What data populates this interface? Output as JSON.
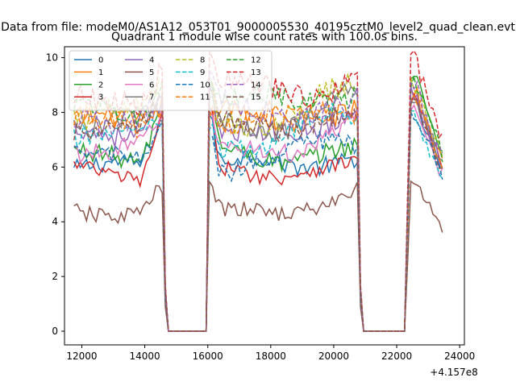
{
  "figure": {
    "suptitle": "Data from file: modeM0/AS1A12_053T01_9000005530_40195cztM0_level2_quad_clean.evt"
  },
  "chart_data": {
    "type": "line",
    "title": "Quadrant 1 module wise count rates with 100.0s bins.",
    "xlabel": "",
    "ylabel": "",
    "x_offset_label": "+4.157e8",
    "xlim": [
      11450,
      24150
    ],
    "ylim": [
      -0.5,
      10.4
    ],
    "xticks": [
      12000,
      14000,
      16000,
      18000,
      20000,
      22000,
      24000
    ],
    "yticks": [
      0,
      2,
      4,
      6,
      8,
      10
    ],
    "legend": {
      "placement": "top-left",
      "columns": 4
    },
    "grid": false,
    "x_start": 11750,
    "x_step": 100,
    "segments": [
      {
        "on_start": 11750,
        "on_end": 14550,
        "drop_end": 14750
      },
      {
        "rise_start": 16050,
        "on_start": 16150,
        "on_end": 20750,
        "drop_end": 20950
      },
      {
        "rise_start": 22350,
        "on_start": 22450,
        "on_end": 23450
      }
    ],
    "series": [
      {
        "name": "0",
        "color": "#1f77b4",
        "dash": "solid",
        "level": 5.9,
        "amp": 0.35,
        "peak": 8.3
      },
      {
        "name": "1",
        "color": "#ff7f0e",
        "dash": "solid",
        "level": 7.6,
        "amp": 0.4,
        "peak": 8.8
      },
      {
        "name": "2",
        "color": "#2ca02c",
        "dash": "solid",
        "level": 6.3,
        "amp": 0.35,
        "peak": 9.3
      },
      {
        "name": "3",
        "color": "#d62728",
        "dash": "solid",
        "level": 5.8,
        "amp": 0.3,
        "peak": 8.5
      },
      {
        "name": "4",
        "color": "#9467bd",
        "dash": "solid",
        "level": 7.4,
        "amp": 0.4,
        "peak": 8.7
      },
      {
        "name": "5",
        "color": "#8c564b",
        "dash": "solid",
        "level": 4.5,
        "amp": 0.3,
        "peak": 5.4
      },
      {
        "name": "6",
        "color": "#e377c2",
        "dash": "solid",
        "level": 6.8,
        "amp": 0.35,
        "peak": 8.1
      },
      {
        "name": "7",
        "color": "#7f7f7f",
        "dash": "solid",
        "level": 7.7,
        "amp": 0.4,
        "peak": 8.6
      },
      {
        "name": "8",
        "color": "#bcbd22",
        "dash": "dashed",
        "level": 7.9,
        "amp": 0.45,
        "peak": 8.9
      },
      {
        "name": "9",
        "color": "#17becf",
        "dash": "dashed",
        "level": 7.0,
        "amp": 0.4,
        "peak": 7.9
      },
      {
        "name": "10",
        "color": "#1f77b4",
        "dash": "dashed",
        "level": 6.2,
        "amp": 0.35,
        "peak": 8.0
      },
      {
        "name": "11",
        "color": "#ff7f0e",
        "dash": "dashed",
        "level": 7.6,
        "amp": 0.4,
        "peak": 8.7
      },
      {
        "name": "12",
        "color": "#2ca02c",
        "dash": "dashed",
        "level": 8.2,
        "amp": 0.4,
        "peak": 9.2
      },
      {
        "name": "13",
        "color": "#d62728",
        "dash": "dashed",
        "level": 8.6,
        "amp": 0.45,
        "peak": 9.9
      },
      {
        "name": "14",
        "color": "#9467bd",
        "dash": "dashed",
        "level": 7.9,
        "amp": 0.45,
        "peak": 9.0
      },
      {
        "name": "15",
        "color": "#8c564b",
        "dash": "dashed",
        "level": 7.5,
        "amp": 0.4,
        "peak": 8.4
      }
    ]
  }
}
